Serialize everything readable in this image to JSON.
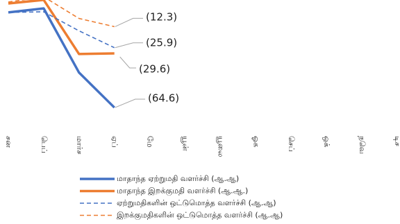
{
  "chart_data": {
    "type": "line",
    "categories": [
      "சன",
      "பெப்",
      "மார்ச",
      "ஏப்",
      "மே",
      "யூன்",
      "யூலை",
      "ஓக",
      "செப்",
      "ஒக்",
      "நவெ",
      "டிச"
    ],
    "series": [
      {
        "name": "மாதாந்த ஏற்றுமதி வளர்ச்சி (ஆ.ஆ)",
        "color": "#4472c4",
        "style": "solid",
        "values": [
          -3.1,
          -0.5,
          -42.0,
          -64.6,
          null,
          null,
          null,
          null,
          null,
          null,
          null,
          null
        ],
        "value_labels": [
          null,
          null,
          null,
          "(64.6)",
          null,
          null,
          null,
          null,
          null,
          null,
          null,
          null
        ]
      },
      {
        "name": "மாதாந்த இறக்குமதி வளர்ச்சி (ஆ.ஆ.)",
        "color": "#ed7d31",
        "style": "solid",
        "values": [
          2.7,
          5.0,
          -30.0,
          -29.6,
          null,
          null,
          null,
          null,
          null,
          null,
          null,
          null
        ],
        "value_labels": [
          null,
          null,
          null,
          "(29.6)",
          null,
          null,
          null,
          null,
          null,
          null,
          null,
          null
        ]
      },
      {
        "name": "ஏற்றுமதிகளின் ஒட்டுமொத்த வளர்ச்சி (ஆ.ஆ)",
        "color": "#4472c4",
        "style": "dashed",
        "values": [
          -3.1,
          -2.7,
          -15.0,
          -25.9,
          null,
          null,
          null,
          null,
          null,
          null,
          null,
          null
        ],
        "value_labels": [
          null,
          null,
          null,
          "(25.9)",
          null,
          null,
          null,
          null,
          null,
          null,
          null,
          null
        ]
      },
      {
        "name": "இறக்குமதிகளின் ஒட்டுமொத்த வளர்ச்சி (ஆ.ஆ)",
        "color": "#ed7d31",
        "style": "dashed",
        "values": [
          3.6,
          7.0,
          -7.0,
          -12.3,
          null,
          null,
          null,
          null,
          null,
          null,
          null,
          null
        ],
        "value_labels": [
          null,
          null,
          null,
          "(12.3)",
          null,
          null,
          null,
          null,
          null,
          null,
          null,
          null
        ]
      }
    ]
  }
}
